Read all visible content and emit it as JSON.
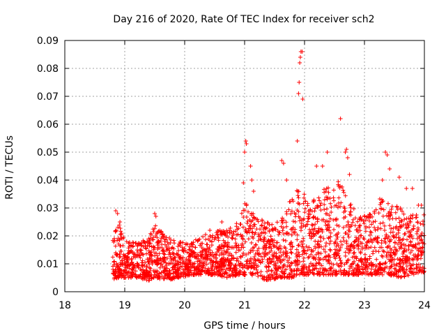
{
  "chart_data": {
    "type": "scatter",
    "title": "Day 216 of 2020, Rate Of TEC Index for receiver sch2",
    "xlabel": "GPS time / hours",
    "ylabel": "ROTI / TECUs",
    "xlim": [
      18,
      24
    ],
    "ylim": [
      0,
      0.09
    ],
    "xticks": [
      "18",
      "19",
      "20",
      "21",
      "22",
      "23",
      "24"
    ],
    "yticks": [
      "0",
      "0.01",
      "0.02",
      "0.03",
      "0.04",
      "0.05",
      "0.06",
      "0.07",
      "0.08",
      "0.09"
    ],
    "grid": true,
    "marker": "+",
    "color": "#ff0000",
    "envelope": {
      "x": [
        18.8,
        18.9,
        19.0,
        19.2,
        19.4,
        19.5,
        19.7,
        19.9,
        20.1,
        20.3,
        20.5,
        20.7,
        20.9,
        21.0,
        21.2,
        21.4,
        21.6,
        21.8,
        21.9,
        22.0,
        22.2,
        22.4,
        22.6,
        22.7,
        22.9,
        23.1,
        23.3,
        23.4,
        23.6,
        23.8,
        24.0
      ],
      "upper": [
        0.022,
        0.025,
        0.018,
        0.018,
        0.02,
        0.024,
        0.02,
        0.018,
        0.018,
        0.02,
        0.022,
        0.022,
        0.025,
        0.033,
        0.028,
        0.025,
        0.025,
        0.035,
        0.04,
        0.035,
        0.035,
        0.038,
        0.04,
        0.035,
        0.028,
        0.028,
        0.035,
        0.033,
        0.03,
        0.028,
        0.028
      ],
      "lower": [
        0.004,
        0.005,
        0.005,
        0.005,
        0.004,
        0.005,
        0.004,
        0.005,
        0.006,
        0.006,
        0.006,
        0.005,
        0.006,
        0.006,
        0.005,
        0.004,
        0.005,
        0.005,
        0.006,
        0.006,
        0.006,
        0.006,
        0.006,
        0.006,
        0.006,
        0.006,
        0.006,
        0.006,
        0.005,
        0.006,
        0.007
      ]
    },
    "highlights": [
      {
        "x": 18.85,
        "y": 0.029
      },
      {
        "x": 18.88,
        "y": 0.028
      },
      {
        "x": 18.92,
        "y": 0.025
      },
      {
        "x": 19.5,
        "y": 0.028
      },
      {
        "x": 19.52,
        "y": 0.027
      },
      {
        "x": 20.42,
        "y": 0.022
      },
      {
        "x": 20.62,
        "y": 0.025
      },
      {
        "x": 21.02,
        "y": 0.054
      },
      {
        "x": 21.03,
        "y": 0.053
      },
      {
        "x": 21.0,
        "y": 0.05
      },
      {
        "x": 20.98,
        "y": 0.039
      },
      {
        "x": 21.1,
        "y": 0.045
      },
      {
        "x": 21.12,
        "y": 0.04
      },
      {
        "x": 21.15,
        "y": 0.036
      },
      {
        "x": 21.62,
        "y": 0.047
      },
      {
        "x": 21.65,
        "y": 0.046
      },
      {
        "x": 21.7,
        "y": 0.04
      },
      {
        "x": 21.88,
        "y": 0.054
      },
      {
        "x": 21.9,
        "y": 0.071
      },
      {
        "x": 21.91,
        "y": 0.075
      },
      {
        "x": 21.92,
        "y": 0.082
      },
      {
        "x": 21.93,
        "y": 0.084
      },
      {
        "x": 21.94,
        "y": 0.086
      },
      {
        "x": 21.96,
        "y": 0.086
      },
      {
        "x": 21.97,
        "y": 0.069
      },
      {
        "x": 22.2,
        "y": 0.045
      },
      {
        "x": 22.3,
        "y": 0.045
      },
      {
        "x": 22.38,
        "y": 0.05
      },
      {
        "x": 22.6,
        "y": 0.062
      },
      {
        "x": 22.7,
        "y": 0.051
      },
      {
        "x": 22.68,
        "y": 0.05
      },
      {
        "x": 22.72,
        "y": 0.048
      },
      {
        "x": 22.75,
        "y": 0.042
      },
      {
        "x": 23.35,
        "y": 0.05
      },
      {
        "x": 23.38,
        "y": 0.049
      },
      {
        "x": 23.42,
        "y": 0.044
      },
      {
        "x": 23.3,
        "y": 0.04
      },
      {
        "x": 23.58,
        "y": 0.041
      },
      {
        "x": 23.7,
        "y": 0.037
      },
      {
        "x": 23.8,
        "y": 0.037
      },
      {
        "x": 23.9,
        "y": 0.031
      },
      {
        "x": 23.95,
        "y": 0.031
      }
    ]
  }
}
